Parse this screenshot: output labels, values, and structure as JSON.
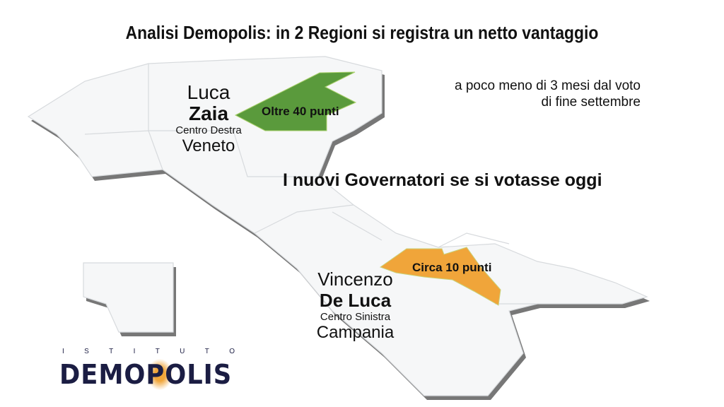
{
  "title": "Analisi Demopolis: in 2 Regioni si registra un netto vantaggio",
  "subtitle_lines": [
    "a poco meno di 3 mesi dal voto",
    "di fine settembre"
  ],
  "headline": "I nuovi Governatori se si votasse oggi",
  "regions": [
    {
      "first_name": "Luca",
      "last_name": "Zaia",
      "coalition": "Centro Destra",
      "region": "Veneto",
      "lead": "Oltre 40 punti",
      "color": "#5a9a3c"
    },
    {
      "first_name": "Vincenzo",
      "last_name": "De Luca",
      "coalition": "Centro Sinistra",
      "region": "Campania",
      "lead": "Circa 10 punti",
      "color": "#f0a53a"
    }
  ],
  "logo": {
    "top": "ISTITUTO",
    "main": "DEMOPOLIS",
    "accent": "#f0a53a",
    "color": "#1b1d43"
  }
}
